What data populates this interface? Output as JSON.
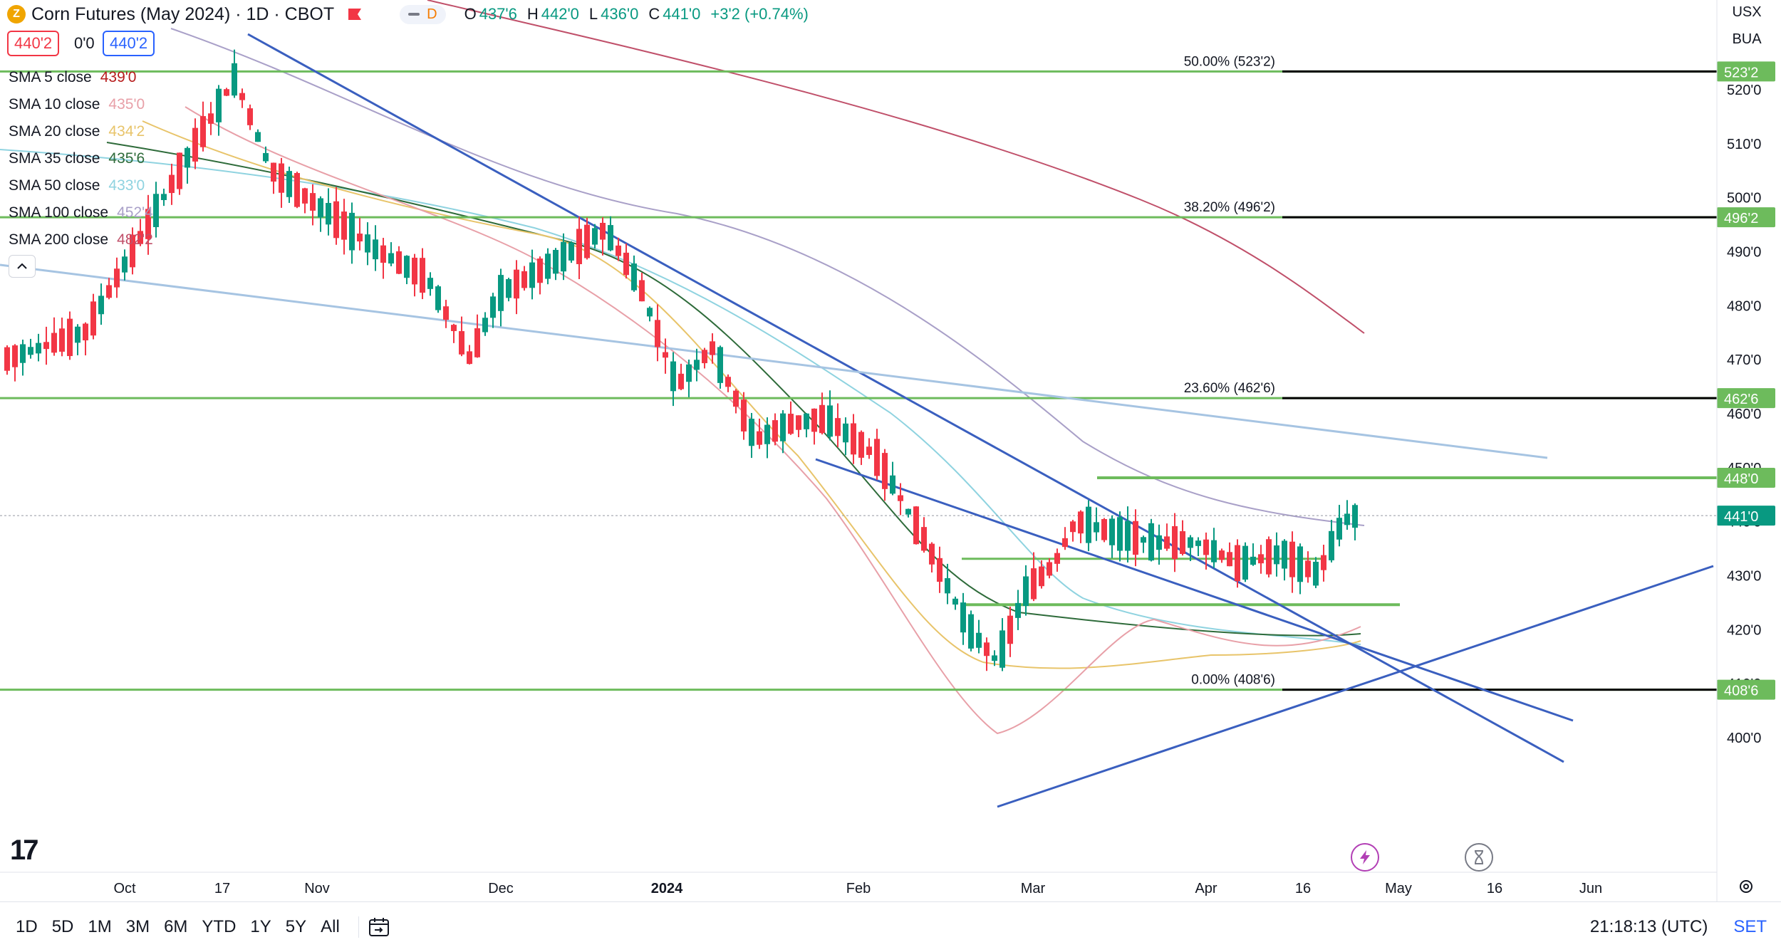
{
  "header": {
    "symbol_title": "Corn Futures (May 2024) · 1D · CBOT",
    "coin_letter": "Z",
    "interval_badge": "D",
    "ohlc": {
      "o_label": "O",
      "o_value": "437'6",
      "h_label": "H",
      "h_value": "442'0",
      "l_label": "L",
      "l_value": "436'0",
      "c_label": "C",
      "c_value": "441'0",
      "change": "+3'2 (+0.74%)"
    }
  },
  "price_boxes": {
    "sell": "440'2",
    "spread": "0'0",
    "buy": "440'2"
  },
  "indicators": [
    {
      "label": "SMA 5 close",
      "value": "439'0",
      "color": "#b71c1c"
    },
    {
      "label": "SMA 10 close",
      "value": "435'0",
      "color": "#e8a0a8"
    },
    {
      "label": "SMA 20 close",
      "value": "434'2",
      "color": "#e8c46a"
    },
    {
      "label": "SMA 35 close",
      "value": "435'6",
      "color": "#2e6b3a"
    },
    {
      "label": "SMA 50 close",
      "value": "433'0",
      "color": "#8fd3e0"
    },
    {
      "label": "SMA 100 close",
      "value": "452'4",
      "color": "#a9a0c8"
    },
    {
      "label": "SMA 200 close",
      "value": "482'2",
      "color": "#c0506a"
    }
  ],
  "toolbar_right": {
    "currency": "USX",
    "unit": "BUA"
  },
  "price_axis": {
    "ticks": [
      "520'0",
      "510'0",
      "500'0",
      "490'0",
      "480'0",
      "470'0",
      "460'0",
      "450'0",
      "440'0",
      "430'0",
      "420'0",
      "410'0",
      "400'0"
    ],
    "tags": [
      {
        "label": "523'2",
        "value": 523.25,
        "color": "#6dbb5c"
      },
      {
        "label": "496'2",
        "value": 496.25,
        "color": "#6dbb5c"
      },
      {
        "label": "462'6",
        "value": 462.75,
        "color": "#6dbb5c"
      },
      {
        "label": "448'0",
        "value": 448.0,
        "color": "#6dbb5c"
      },
      {
        "label": "441'0",
        "value": 441.0,
        "color": "#089981"
      },
      {
        "label": "408'6",
        "value": 408.75,
        "color": "#6dbb5c"
      }
    ]
  },
  "fib_levels": [
    {
      "label": "50.00% (523'2)",
      "value": 523.25
    },
    {
      "label": "38.20% (496'2)",
      "value": 496.25
    },
    {
      "label": "23.60% (462'6)",
      "value": 462.75
    },
    {
      "label": "0.00% (408'6)",
      "value": 408.75
    }
  ],
  "time_axis": [
    {
      "label": "Oct",
      "bold": false
    },
    {
      "label": "17",
      "bold": false
    },
    {
      "label": "Nov",
      "bold": false
    },
    {
      "label": "Dec",
      "bold": false
    },
    {
      "label": "2024",
      "bold": true
    },
    {
      "label": "Feb",
      "bold": false
    },
    {
      "label": "Mar",
      "bold": false
    },
    {
      "label": "Apr",
      "bold": false
    },
    {
      "label": "16",
      "bold": false
    },
    {
      "label": "May",
      "bold": false
    },
    {
      "label": "16",
      "bold": false
    },
    {
      "label": "Jun",
      "bold": false
    }
  ],
  "bottom_bar": {
    "ranges": [
      "1D",
      "5D",
      "1M",
      "3M",
      "6M",
      "YTD",
      "1Y",
      "5Y",
      "All"
    ],
    "clock": "21:18:13 (UTC)",
    "set_label": "SET"
  },
  "logo": "17",
  "colors": {
    "up": "#089981",
    "down": "#f23645",
    "fib_green": "#6dbb5c",
    "trend_blue": "#3a5fbf"
  }
}
